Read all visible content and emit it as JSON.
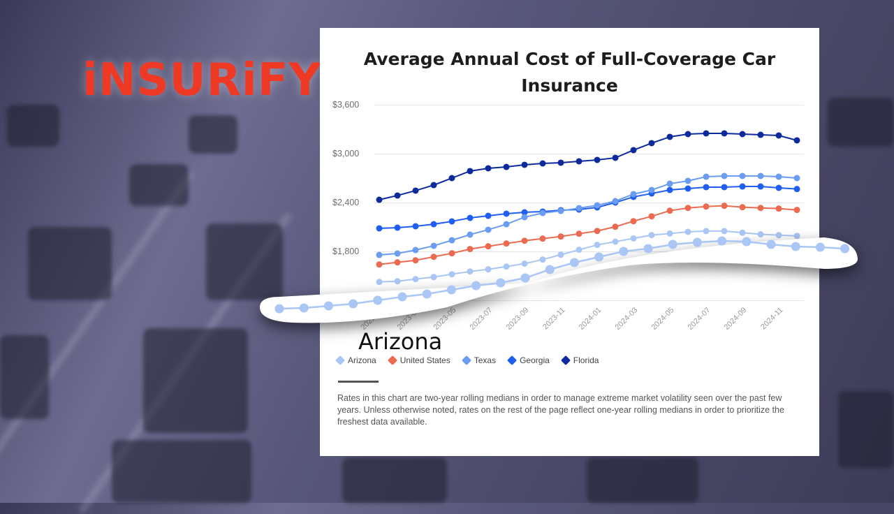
{
  "brand": {
    "logo_text": "iNSURiFY",
    "color": "#ee3a24"
  },
  "card": {
    "title": "Average Annual Cost of Full-Coverage Car Insurance",
    "callout_label": "Arizona",
    "note": "Rates in this chart are two-year rolling medians in order to manage extreme market volatility seen over the past few years. Unless otherwise noted, rates on the rest of the page reflect one-year rolling medians in order to prioritize the freshest data available."
  },
  "chart_data": {
    "type": "line",
    "title": "Average Annual Cost of Full-Coverage Car Insurance",
    "xlabel": "",
    "ylabel": "",
    "ylim": [
      1200,
      3600
    ],
    "yticks": [
      "$3,600",
      "$3,000",
      "$2,400",
      "$1,800"
    ],
    "ytick_values": [
      3600,
      3000,
      2400,
      1800
    ],
    "grid": true,
    "legend_position": "bottom",
    "x": [
      "2023-01",
      "2023-02",
      "2023-03",
      "2023-04",
      "2023-05",
      "2023-06",
      "2023-07",
      "2023-08",
      "2023-09",
      "2023-10",
      "2023-11",
      "2023-12",
      "2024-01",
      "2024-02",
      "2024-03",
      "2024-04",
      "2024-05",
      "2024-06",
      "2024-07",
      "2024-08",
      "2024-09",
      "2024-10",
      "2024-11",
      "2024-12"
    ],
    "xtick_labels": [
      "2023-01",
      "2023-03",
      "2023-05",
      "2023-07",
      "2023-09",
      "2023-11",
      "2024-01",
      "2024-03",
      "2024-05",
      "2024-07",
      "2024-09",
      "2024-11"
    ],
    "series": [
      {
        "name": "Arizona",
        "color": "#a9c6f5",
        "values": [
          1426,
          1434,
          1460,
          1486,
          1520,
          1554,
          1580,
          1614,
          1650,
          1700,
          1760,
          1820,
          1880,
          1920,
          1960,
          2000,
          2020,
          2040,
          2050,
          2050,
          2030,
          2010,
          2000,
          1990
        ]
      },
      {
        "name": "United States",
        "color": "#ec6a4f",
        "values": [
          1640,
          1666,
          1691,
          1734,
          1777,
          1829,
          1863,
          1897,
          1931,
          1957,
          1983,
          2017,
          2051,
          2103,
          2171,
          2231,
          2300,
          2334,
          2351,
          2360,
          2343,
          2334,
          2326,
          2309
        ]
      },
      {
        "name": "Texas",
        "color": "#6a9cf2",
        "values": [
          1757,
          1774,
          1817,
          1869,
          1937,
          2006,
          2066,
          2134,
          2220,
          2271,
          2297,
          2331,
          2366,
          2417,
          2503,
          2554,
          2631,
          2666,
          2717,
          2726,
          2726,
          2726,
          2717,
          2700
        ]
      },
      {
        "name": "Georgia",
        "color": "#1f5ef0",
        "values": [
          2083,
          2091,
          2109,
          2134,
          2169,
          2211,
          2237,
          2263,
          2280,
          2289,
          2306,
          2314,
          2340,
          2400,
          2469,
          2511,
          2554,
          2571,
          2589,
          2589,
          2597,
          2597,
          2580,
          2566
        ]
      },
      {
        "name": "Florida",
        "color": "#0d2a9c",
        "values": [
          2434,
          2486,
          2546,
          2614,
          2700,
          2786,
          2820,
          2837,
          2863,
          2880,
          2889,
          2906,
          2923,
          2949,
          3043,
          3129,
          3206,
          3240,
          3249,
          3249,
          3240,
          3231,
          3223,
          3163
        ]
      }
    ]
  },
  "legend": [
    {
      "label": "Arizona",
      "color": "#a9c6f5"
    },
    {
      "label": "United States",
      "color": "#ec6a4f"
    },
    {
      "label": "Texas",
      "color": "#6a9cf2"
    },
    {
      "label": "Georgia",
      "color": "#1f5ef0"
    },
    {
      "label": "Florida",
      "color": "#0d2a9c"
    }
  ]
}
